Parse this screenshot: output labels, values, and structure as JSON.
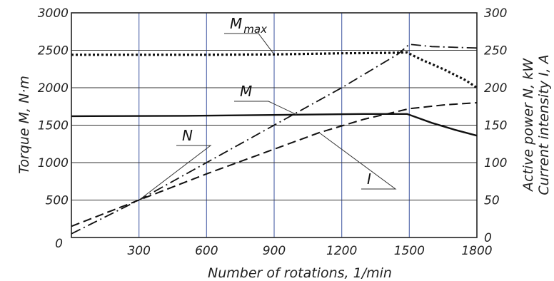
{
  "chart_data": {
    "type": "line",
    "title": "",
    "xlabel": "Number of rotations, 1/min",
    "ylabel_left": "Torque M, N·m",
    "ylabel_right_1": "Active power N, kW",
    "ylabel_right_2": "Current intensity I, A",
    "xlim": [
      0,
      1800
    ],
    "ylim_left": [
      0,
      3000
    ],
    "ylim_right": [
      0,
      300
    ],
    "x_ticks": [
      "0",
      "300",
      "600",
      "900",
      "1200",
      "1500",
      "1800"
    ],
    "y_left_ticks": [
      "500",
      "1000",
      "1500",
      "2000",
      "2500",
      "3000"
    ],
    "y_left_zero": "0",
    "y_right_ticks": [
      "0",
      "50",
      "100",
      "150",
      "200",
      "250",
      "300"
    ],
    "grid": true,
    "series": [
      {
        "name": "M",
        "subscript": "max",
        "axis": "left",
        "style": "dotted",
        "points": [
          [
            0,
            2440
          ],
          [
            300,
            2440
          ],
          [
            600,
            2440
          ],
          [
            900,
            2445
          ],
          [
            1200,
            2460
          ],
          [
            1400,
            2465
          ],
          [
            1490,
            2470
          ],
          [
            1550,
            2380
          ],
          [
            1650,
            2250
          ],
          [
            1750,
            2100
          ],
          [
            1800,
            2000
          ]
        ]
      },
      {
        "name": "M",
        "subscript": "",
        "axis": "left",
        "style": "solid",
        "points": [
          [
            0,
            1620
          ],
          [
            500,
            1625
          ],
          [
            1000,
            1640
          ],
          [
            1300,
            1650
          ],
          [
            1490,
            1650
          ],
          [
            1600,
            1530
          ],
          [
            1700,
            1440
          ],
          [
            1800,
            1360
          ]
        ]
      },
      {
        "name": "N",
        "subscript": "",
        "axis": "right",
        "style": "dash-dot",
        "points": [
          [
            0,
            5
          ],
          [
            300,
            50
          ],
          [
            600,
            100
          ],
          [
            900,
            150
          ],
          [
            1200,
            200
          ],
          [
            1450,
            245
          ],
          [
            1500,
            258
          ],
          [
            1600,
            255
          ],
          [
            1800,
            253
          ]
        ]
      },
      {
        "name": "I",
        "subscript": "",
        "axis": "right",
        "style": "dashed",
        "points": [
          [
            0,
            15
          ],
          [
            300,
            50
          ],
          [
            600,
            85
          ],
          [
            900,
            118
          ],
          [
            1100,
            140
          ],
          [
            1300,
            158
          ],
          [
            1500,
            172
          ],
          [
            1650,
            177
          ],
          [
            1800,
            180
          ]
        ]
      }
    ],
    "colors": {
      "lines": "#111111",
      "vertical_grid": "#5a6fae",
      "horizontal_grid": "#333333"
    }
  }
}
